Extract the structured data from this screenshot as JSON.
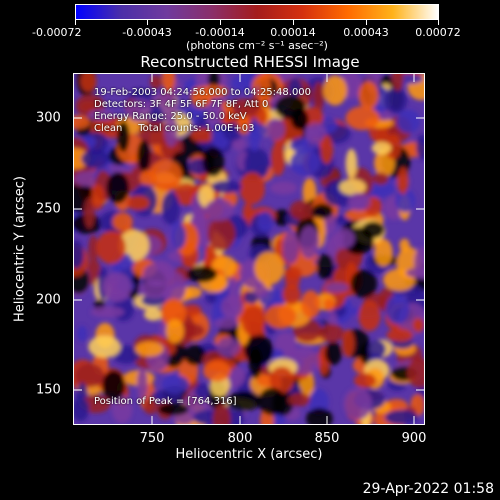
{
  "colorbar": {
    "colors": [
      "#0000ff",
      "#4b2fa8",
      "#6f3a9e",
      "#8a2f6a",
      "#a41c1c",
      "#d4300f",
      "#ff6a00",
      "#ffb21a",
      "#ffffff"
    ],
    "ticks": [
      "-0.00072",
      "-0.00043",
      "-0.00014",
      "0.00014",
      "0.00043",
      "0.00072"
    ],
    "units": "(photons cm⁻² s⁻¹ asec⁻²)"
  },
  "title": "Reconstructed RHESSI Image",
  "info": {
    "time": "19-Feb-2003 04:24:56.000 to 04:25:48.000",
    "detectors": "Detectors: 3F 4F 5F 6F 7F 8F, Att 0",
    "energy": "Energy Range: 25.0 - 50.0 keV",
    "clean": "Clean     Total counts: 1.00E+03",
    "peak": "Position of Peak = [764,316]"
  },
  "axes": {
    "xlabel": "Heliocentric X (arcsec)",
    "ylabel": "Heliocentric Y (arcsec)",
    "xticks": [
      "750",
      "800",
      "850",
      "900"
    ],
    "yticks": [
      "300",
      "250",
      "200",
      "150"
    ]
  },
  "timestamp": "29-Apr-2022 01:58"
}
